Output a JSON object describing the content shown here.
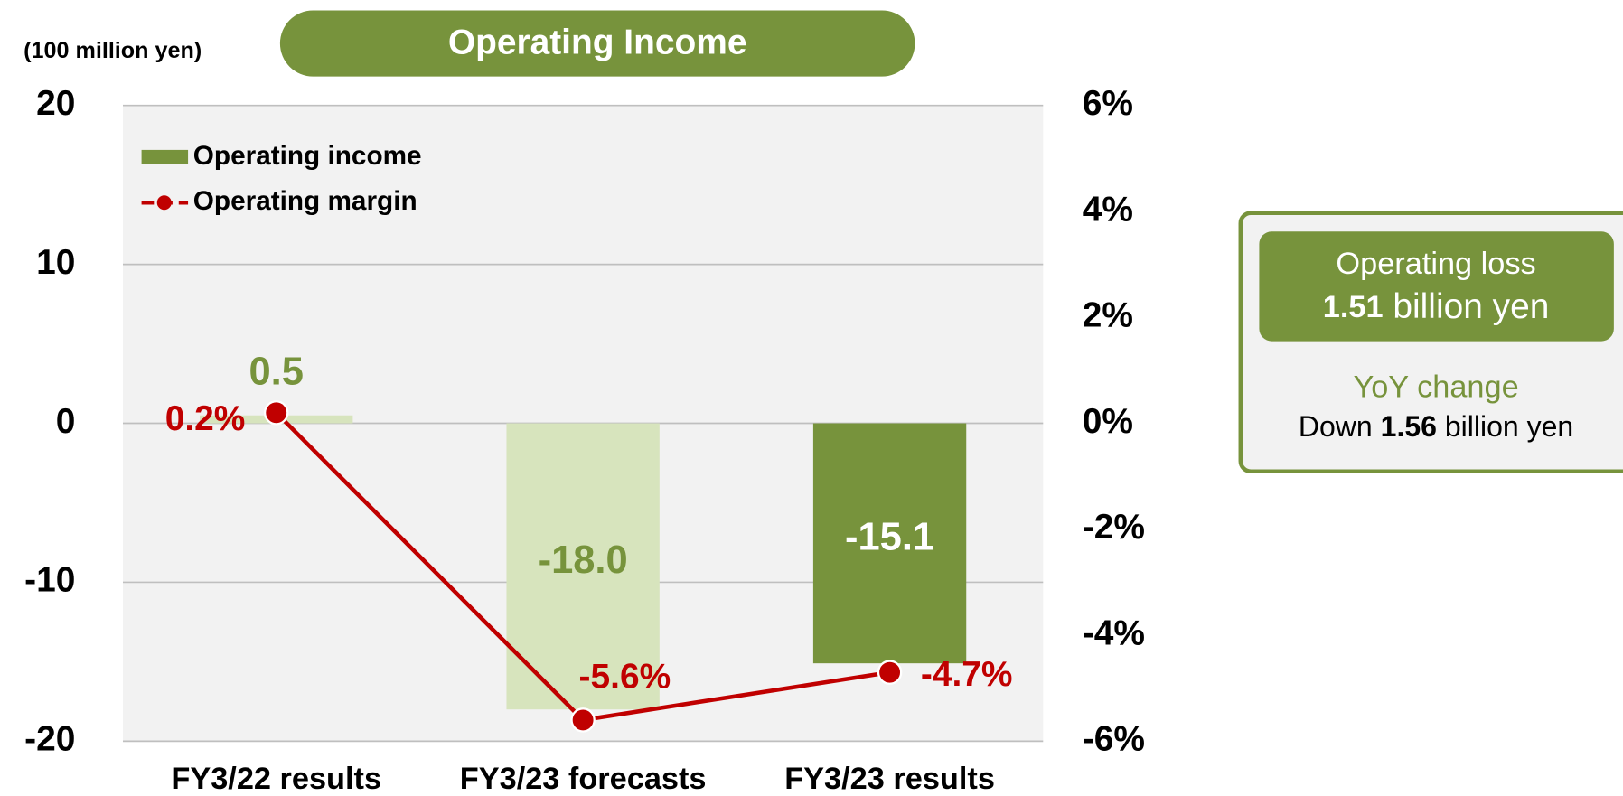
{
  "chart_data": {
    "type": "bar",
    "title": "Operating Income",
    "y_axis_label": "(100 million yen)",
    "categories": [
      "FY3/22 results",
      "FY3/23 forecasts",
      "FY3/23 results"
    ],
    "series": [
      {
        "name": "Operating income",
        "type": "bar",
        "values": [
          0.5,
          -18.0,
          -15.1
        ],
        "value_labels": [
          "0.5",
          "-18.0",
          "-15.1"
        ],
        "colors": [
          "#d7e4bd",
          "#d7e4bd",
          "#77933c"
        ],
        "value_label_colors": [
          "#77933c",
          "#77933c",
          "#ffffff"
        ]
      },
      {
        "name": "Operating margin",
        "type": "line",
        "axis": "y2",
        "color": "#c00000",
        "values": [
          0.2,
          -5.6,
          -4.7
        ],
        "value_labels": [
          "0.2%",
          "-5.6%",
          "-4.7%"
        ]
      }
    ],
    "ylim": [
      -20,
      20
    ],
    "yticks": [
      20,
      10,
      0,
      -10,
      -20
    ],
    "y2lim": [
      -6,
      6
    ],
    "y2ticks": [
      {
        "value": 6,
        "label": "6%"
      },
      {
        "value": 4,
        "label": "4%"
      },
      {
        "value": 2,
        "label": "2%"
      },
      {
        "value": 0,
        "label": "0%"
      },
      {
        "value": -2,
        "label": "-2%"
      },
      {
        "value": -4,
        "label": "-4%"
      },
      {
        "value": -6,
        "label": "-6%"
      }
    ],
    "grid": true,
    "legend": "upper left"
  },
  "summary_box": {
    "headline": "Operating loss",
    "amount": "1.51",
    "amount_unit": "billion yen",
    "change_label": "YoY change",
    "change_prefix": "Down",
    "change_amount": "1.56",
    "change_unit": "billion yen"
  }
}
